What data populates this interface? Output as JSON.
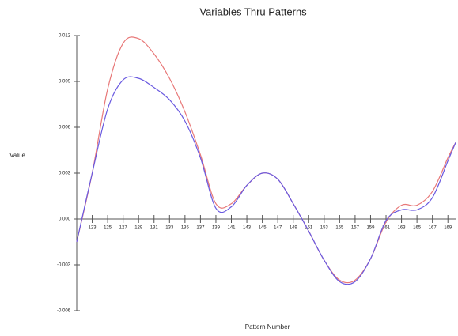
{
  "chart_data": {
    "type": "line",
    "title": "Variables Thru Patterns",
    "xlabel": "Pattern Number",
    "ylabel": "Value",
    "x": [
      121,
      123,
      125,
      127,
      129,
      131,
      133,
      135,
      137,
      139,
      141,
      143,
      145,
      147,
      149,
      151,
      153,
      155,
      157,
      159,
      161,
      163,
      165,
      167,
      169,
      170
    ],
    "series": [
      {
        "color": "#e87878",
        "values": [
          -0.0015,
          0.003,
          0.0085,
          0.0115,
          0.0118,
          0.0108,
          0.0092,
          0.007,
          0.0042,
          0.001,
          0.001,
          0.0022,
          0.003,
          0.0026,
          0.001,
          -0.0008,
          -0.0027,
          -0.004,
          -0.004,
          -0.0026,
          -0.0002,
          0.0009,
          0.0009,
          0.0018,
          0.004,
          0.005
        ]
      },
      {
        "color": "#6a5ae0",
        "values": [
          -0.0015,
          0.003,
          0.0072,
          0.0091,
          0.0092,
          0.0086,
          0.0078,
          0.0064,
          0.004,
          0.0007,
          0.0008,
          0.0022,
          0.003,
          0.0026,
          0.001,
          -0.0008,
          -0.0027,
          -0.0041,
          -0.0041,
          -0.0026,
          -0.0001,
          0.0006,
          0.0006,
          0.0014,
          0.0038,
          0.005
        ]
      }
    ],
    "xlim": [
      121,
      170
    ],
    "xticks": [
      123,
      125,
      127,
      129,
      131,
      133,
      135,
      137,
      139,
      141,
      143,
      145,
      147,
      149,
      151,
      153,
      155,
      157,
      159,
      161,
      163,
      165,
      167,
      169
    ],
    "ylim": [
      -0.006,
      0.012
    ],
    "yticks": [
      {
        "value": 0.012,
        "label": "0.012"
      },
      {
        "value": 0.009,
        "label": "0.009"
      },
      {
        "value": 0.006,
        "label": "0.006"
      },
      {
        "value": 0.003,
        "label": "0.003"
      },
      {
        "value": 0,
        "label": "0.000"
      },
      {
        "value": -0.003,
        "label": "-0.003"
      },
      {
        "value": -0.006,
        "label": "-0.006"
      }
    ]
  }
}
